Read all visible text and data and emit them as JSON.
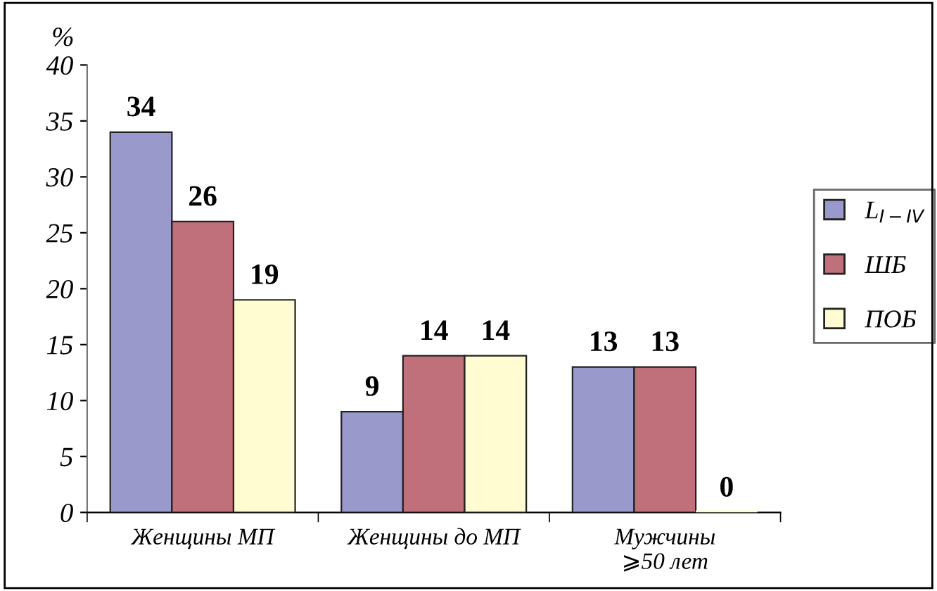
{
  "chart_data": {
    "type": "bar",
    "ylabel": "%",
    "categories": [
      "Женщины МП",
      "Женщины до МП",
      "Мужчины\n⩾50 лет"
    ],
    "series": [
      {
        "name": "L$_{I−IV}$",
        "color": "#9999cc",
        "values": [
          34,
          9,
          13
        ]
      },
      {
        "name": "ШБ",
        "color": "#c0707a",
        "values": [
          26,
          14,
          13
        ]
      },
      {
        "name": "ПОБ",
        "color": "#fefcd0",
        "values": [
          19,
          14,
          0
        ]
      }
    ],
    "ylim": [
      0,
      40
    ],
    "yticks": [
      0,
      5,
      10,
      15,
      20,
      25,
      30,
      35,
      40
    ],
    "data_labels": true,
    "legend": "right",
    "grid": false
  }
}
